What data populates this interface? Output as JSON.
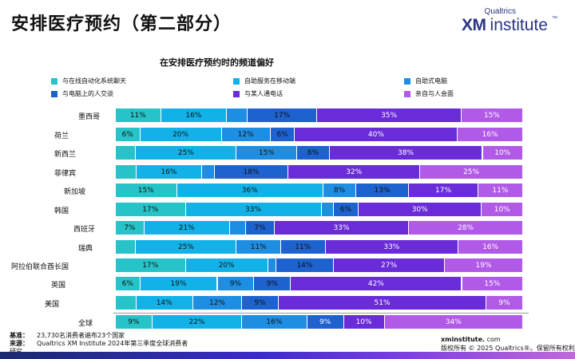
{
  "header": {
    "title": "安排医疗预约（第二部分）",
    "logo_top": "Qualtrics",
    "logo_xm": "XM",
    "logo_institute": "institute",
    "logo_tm": "™"
  },
  "chart_data": {
    "type": "bar",
    "orientation": "horizontal",
    "stacked": true,
    "percent": true,
    "title": "在安排医疗预约时的频道偏好",
    "xlim": [
      0,
      100
    ],
    "legend_position": "top",
    "categories": [
      "墨西哥",
      "荷兰",
      "新西兰",
      "菲律宾",
      "新加坡",
      "韩国",
      "西班牙",
      "瑞典",
      "阿拉伯联合酋长国",
      "英国",
      "美国",
      "全球"
    ],
    "series": [
      {
        "name": "与在线自动化系统聊天",
        "color": "#26c4c8",
        "values": [
          11,
          6,
          5,
          5,
          15,
          17,
          7,
          5,
          17,
          6,
          5,
          9
        ]
      },
      {
        "name": "自助服务在移动端",
        "color": "#12b2e8",
        "values": [
          16,
          20,
          25,
          16,
          36,
          33,
          21,
          25,
          20,
          19,
          14,
          22
        ]
      },
      {
        "name": "自助式电脑",
        "color": "#1e8ee3",
        "values": [
          5,
          12,
          15,
          3,
          8,
          3,
          4,
          11,
          2,
          9,
          12,
          16
        ]
      },
      {
        "name": "与电脑上的人交谈",
        "color": "#1d62cf",
        "values": [
          17,
          6,
          8,
          18,
          13,
          6,
          7,
          11,
          14,
          9,
          9,
          9
        ]
      },
      {
        "name": "与某人通电话",
        "color": "#6a2bd8",
        "values": [
          35,
          40,
          38,
          32,
          17,
          30,
          33,
          33,
          27,
          42,
          51,
          10
        ]
      },
      {
        "name": "亲自与人会面",
        "color": "#b15ae8",
        "values": [
          15,
          16,
          10,
          25,
          11,
          10,
          28,
          16,
          19,
          15,
          9,
          34
        ]
      }
    ],
    "displayed_labels": [
      [
        "11%",
        "16%",
        "",
        "17%",
        "35%",
        "15%"
      ],
      [
        "6%",
        "20%",
        "12%",
        "6%",
        "40%",
        "16%"
      ],
      [
        "",
        "25%",
        "15%",
        "8%",
        "38%",
        "10%"
      ],
      [
        "",
        "16%",
        "",
        "18%",
        "32%",
        "25%"
      ],
      [
        "15%",
        "36%",
        "8%",
        "13%",
        "17%",
        "11%"
      ],
      [
        "17%",
        "33%",
        "",
        "6%",
        "30%",
        "10%"
      ],
      [
        "7%",
        "21%",
        "",
        "7%",
        "33%",
        "28%"
      ],
      [
        "",
        "25%",
        "11%",
        "11%",
        "33%",
        "16%"
      ],
      [
        "17%",
        "20%",
        "",
        "14%",
        "27%",
        "19%"
      ],
      [
        "6%",
        "19%",
        "9%",
        "9%",
        "42%",
        "15%"
      ],
      [
        "",
        "14%",
        "12%",
        "9%",
        "51%",
        "9%"
      ],
      [
        "9%",
        "22%",
        "16%",
        "9%",
        "10%",
        "34%"
      ]
    ]
  },
  "footer": {
    "base_key": "基准：",
    "base_val": "23,730名消费者遍布23个国家",
    "source_key": "来源：",
    "source_val": "Qualtrics XM Institute 2024年第三季度全球消费者",
    "source_val_cont": "研究",
    "site": "xminstitute.",
    "site_tail": " com",
    "copyright": "版权所有 © 2025 Qualtrics®。保留所有权利",
    "copyright_tail": "。"
  }
}
